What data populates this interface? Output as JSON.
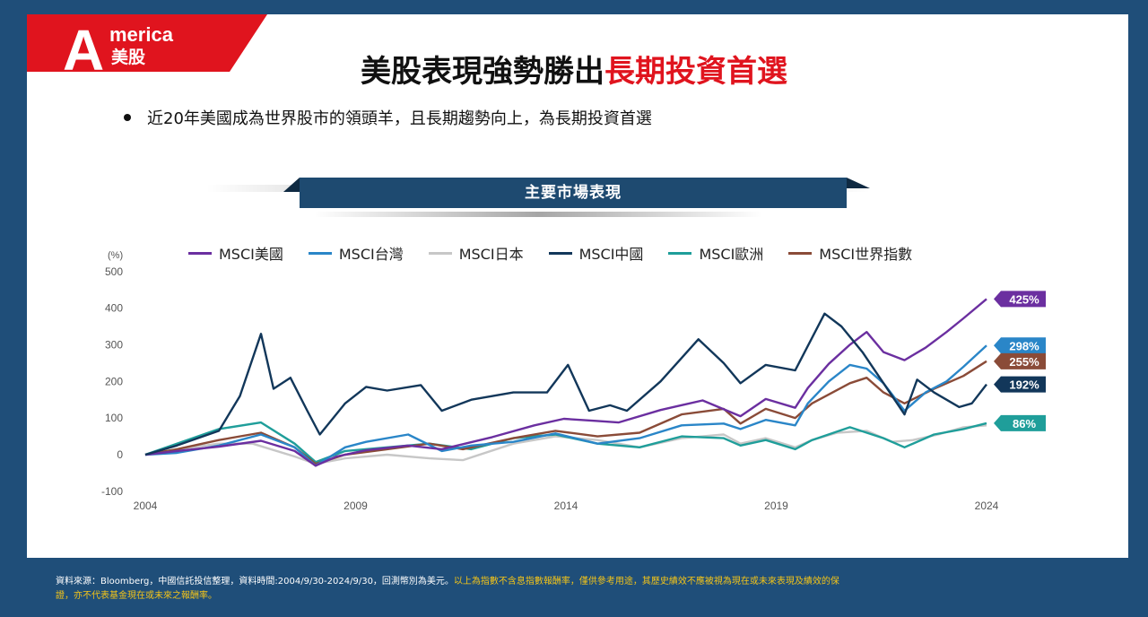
{
  "logo": {
    "letter": "A",
    "word": "merica",
    "sub": "美股"
  },
  "title": {
    "main": "美股表現強勢勝出",
    "highlight": "長期投資首選"
  },
  "bullet": "近20年美國成為世界股市的領頭羊，且長期趨勢向上，為長期投資首選",
  "banner": "主要市場表現",
  "colors": {
    "background": "#1f4e79",
    "accent": "#e0141e",
    "banner": "#1e4a70",
    "warning_text": "#f5c518"
  },
  "footer": {
    "source": "資料來源：Bloomberg，中國信託投信整理，資料時間:2004/9/30-2024/9/30，回測幣別為美元。",
    "disclaimer_1": "以上為指數不含息指數報酬率，僅供參考用途，其歷史績效不應被視為現在或未來表現及績效的保",
    "disclaimer_2": "證，亦不代表基金現在或未來之報酬率。"
  },
  "chart_data": {
    "type": "line",
    "ylabel": "(%)",
    "ylim": [
      -100,
      500
    ],
    "yticks": [
      500,
      400,
      300,
      200,
      100,
      0,
      -100
    ],
    "xlim": [
      2004.75,
      2024.75
    ],
    "xticks": [
      "2004",
      "2009",
      "2014",
      "2019",
      "2024"
    ],
    "grid": false,
    "legend": "top",
    "series": [
      {
        "name": "MSCI美國",
        "color": "#6b2fa0",
        "end_label": "425%",
        "x": [
          2004.75,
          2005.5,
          2006.5,
          2007.5,
          2008.3,
          2008.8,
          2009.3,
          2010,
          2011,
          2011.8,
          2013,
          2014,
          2014.7,
          2015.5,
          2016,
          2017,
          2018,
          2018.9,
          2019.5,
          2020.2,
          2020.5,
          2021,
          2021.5,
          2021.9,
          2022.3,
          2022.8,
          2023.3,
          2023.8,
          2024.2,
          2024.75
        ],
        "y": [
          0,
          10,
          22,
          38,
          10,
          -30,
          -5,
          12,
          25,
          15,
          48,
          80,
          98,
          92,
          88,
          122,
          148,
          105,
          152,
          128,
          182,
          248,
          300,
          335,
          280,
          258,
          292,
          335,
          372,
          425
        ]
      },
      {
        "name": "MSCI台灣",
        "color": "#2a86c8",
        "end_label": "298%",
        "x": [
          2004.75,
          2005.5,
          2006.5,
          2007.5,
          2008.3,
          2008.8,
          2009.5,
          2010,
          2011,
          2011.8,
          2012.5,
          2013.5,
          2014.5,
          2015.5,
          2016.5,
          2017.5,
          2018.5,
          2018.9,
          2019.5,
          2020.2,
          2020.5,
          2021,
          2021.5,
          2021.9,
          2022.3,
          2022.8,
          2023.3,
          2023.8,
          2024.2,
          2024.75
        ],
        "y": [
          0,
          5,
          25,
          55,
          20,
          -30,
          20,
          35,
          55,
          10,
          25,
          35,
          58,
          30,
          45,
          80,
          85,
          70,
          95,
          80,
          140,
          200,
          245,
          235,
          195,
          120,
          170,
          200,
          240,
          298
        ]
      },
      {
        "name": "MSCI日本",
        "color": "#c7c7c7",
        "end_label": "",
        "x": [
          2004.75,
          2005.5,
          2006.5,
          2007.3,
          2008.3,
          2008.8,
          2009.5,
          2010.5,
          2011.5,
          2012.3,
          2013.5,
          2014.5,
          2015.5,
          2016.5,
          2017.5,
          2018.5,
          2018.9,
          2019.5,
          2020.2,
          2020.6,
          2021.2,
          2021.9,
          2022.5,
          2023,
          2023.6,
          2024.2,
          2024.75
        ],
        "y": [
          0,
          15,
          30,
          30,
          -5,
          -25,
          -10,
          0,
          -10,
          -15,
          30,
          50,
          40,
          20,
          45,
          55,
          30,
          45,
          20,
          40,
          60,
          65,
          35,
          40,
          55,
          75,
          80
        ]
      },
      {
        "name": "MSCI中國",
        "color": "#12375a",
        "end_label": "192%",
        "x": [
          2004.75,
          2005.5,
          2006.5,
          2007.0,
          2007.5,
          2007.8,
          2008.2,
          2008.6,
          2008.9,
          2009.5,
          2010,
          2010.5,
          2011.3,
          2011.8,
          2012.5,
          2013.5,
          2014.3,
          2014.8,
          2015.3,
          2015.8,
          2016.2,
          2017,
          2017.9,
          2018.5,
          2018.9,
          2019.5,
          2020.2,
          2020.9,
          2021.3,
          2021.8,
          2022.3,
          2022.8,
          2023.1,
          2023.5,
          2024.1,
          2024.4,
          2024.75
        ],
        "y": [
          0,
          25,
          65,
          160,
          330,
          180,
          210,
          120,
          55,
          140,
          185,
          175,
          190,
          120,
          150,
          170,
          170,
          245,
          120,
          135,
          120,
          200,
          315,
          250,
          195,
          245,
          230,
          385,
          350,
          280,
          195,
          110,
          205,
          170,
          130,
          140,
          192
        ]
      },
      {
        "name": "MSCI歐洲",
        "color": "#1f9e9a",
        "end_label": "86%",
        "x": [
          2004.75,
          2005.5,
          2006.5,
          2007.5,
          2008.3,
          2008.8,
          2009.5,
          2010.5,
          2011.5,
          2012.5,
          2013.5,
          2014.5,
          2015.5,
          2016.5,
          2017.5,
          2018.5,
          2018.9,
          2019.5,
          2020.2,
          2020.6,
          2021.5,
          2022.3,
          2022.8,
          2023.5,
          2024.2,
          2024.75
        ],
        "y": [
          0,
          30,
          70,
          88,
          30,
          -20,
          10,
          20,
          30,
          15,
          45,
          55,
          30,
          20,
          50,
          45,
          25,
          40,
          15,
          40,
          75,
          45,
          20,
          55,
          70,
          86
        ]
      },
      {
        "name": "MSCI世界指數",
        "color": "#8a4b38",
        "end_label": "255%",
        "x": [
          2004.75,
          2005.5,
          2006.5,
          2007.5,
          2008.3,
          2008.8,
          2009.5,
          2010.5,
          2011.5,
          2012.3,
          2013.5,
          2014.5,
          2015.5,
          2016.5,
          2017.5,
          2018.5,
          2018.9,
          2019.5,
          2020.2,
          2020.6,
          2021.5,
          2021.9,
          2022.3,
          2022.8,
          2023.5,
          2024.2,
          2024.75
        ],
        "y": [
          0,
          15,
          40,
          60,
          20,
          -25,
          0,
          15,
          30,
          15,
          45,
          65,
          50,
          60,
          110,
          125,
          85,
          125,
          100,
          140,
          195,
          210,
          170,
          140,
          180,
          215,
          255
        ]
      }
    ]
  }
}
